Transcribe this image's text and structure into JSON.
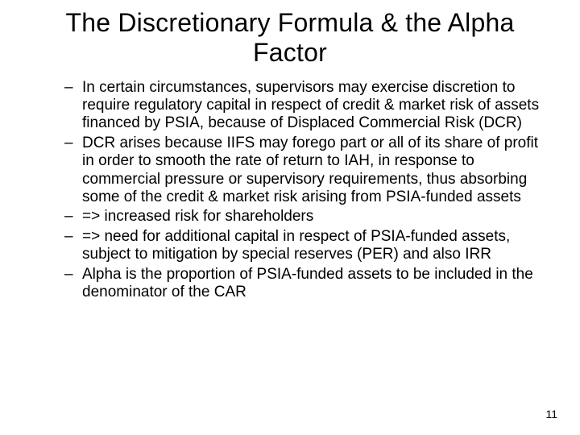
{
  "slide": {
    "title": "The Discretionary Formula & the Alpha Factor",
    "bullets": [
      "In certain circumstances, supervisors may exercise discretion to require regulatory capital in respect of credit & market risk of assets financed by PSIA, because of  Displaced Commercial Risk (DCR)",
      "DCR arises because IIFS may forego part or all of its share of profit in order to smooth the rate of return to IAH, in response to commercial pressure or supervisory requirements, thus absorbing some of the credit & market risk arising from PSIA-funded assets",
      " => increased risk for shareholders",
      "=> need for additional capital in respect of PSIA-funded assets, subject to mitigation by special reserves (PER) and also IRR",
      "Alpha is the proportion of PSIA-funded assets to be included in the denominator of the CAR"
    ],
    "page_number": "11"
  },
  "style": {
    "background_color": "#ffffff",
    "text_color": "#000000",
    "title_fontsize": 32,
    "body_fontsize": 19,
    "pagenum_fontsize": 14
  }
}
